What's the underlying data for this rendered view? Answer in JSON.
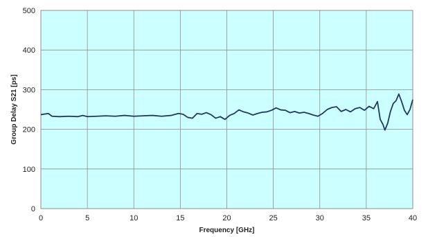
{
  "chart_data": {
    "type": "line",
    "title": "",
    "xlabel": "Frequency [GHz]",
    "ylabel": "Group Delay S21 [ps]",
    "xlim": [
      0,
      40
    ],
    "ylim": [
      0,
      500
    ],
    "xticks": [
      "0",
      "5",
      "10",
      "15",
      "20",
      "25",
      "30",
      "35",
      "40"
    ],
    "yticks": [
      "0",
      "100",
      "200",
      "300",
      "400",
      "500"
    ],
    "grid": true,
    "legend": "none",
    "colors": {
      "plot_background": "#ccffff",
      "line": "#1f3864",
      "grid": "#8c8c8c"
    },
    "series": [
      {
        "name": "",
        "x": [
          0,
          0.8,
          1.2,
          2,
          3,
          4,
          4.5,
          5,
          6,
          7,
          8,
          9,
          10,
          11,
          12,
          13,
          14,
          14.8,
          15.3,
          15.8,
          16.3,
          16.8,
          17.3,
          17.8,
          18.3,
          18.8,
          19.3,
          19.8,
          20.3,
          20.8,
          21.3,
          21.8,
          22.3,
          22.8,
          23.3,
          23.8,
          24.3,
          24.8,
          25.3,
          25.8,
          26.3,
          26.8,
          27.3,
          27.8,
          28.3,
          28.8,
          29.3,
          29.8,
          30.3,
          30.8,
          31.3,
          31.8,
          32.3,
          32.8,
          33.3,
          33.8,
          34.3,
          34.8,
          35.3,
          35.8,
          36.2,
          36.5,
          36.8,
          37.0,
          37.3,
          37.6,
          37.9,
          38.2,
          38.5,
          38.8,
          39.1,
          39.4,
          39.7,
          40
        ],
        "y": [
          237,
          240,
          233,
          232,
          233,
          232,
          235,
          232,
          233,
          234,
          233,
          235,
          233,
          234,
          235,
          233,
          235,
          240,
          238,
          230,
          228,
          240,
          238,
          242,
          237,
          228,
          232,
          225,
          235,
          240,
          249,
          244,
          241,
          236,
          240,
          243,
          244,
          248,
          254,
          249,
          248,
          242,
          245,
          241,
          243,
          240,
          236,
          233,
          240,
          250,
          255,
          257,
          245,
          250,
          244,
          252,
          255,
          248,
          258,
          252,
          270,
          225,
          212,
          198,
          215,
          245,
          265,
          272,
          289,
          270,
          248,
          237,
          250,
          275
        ]
      }
    ]
  }
}
